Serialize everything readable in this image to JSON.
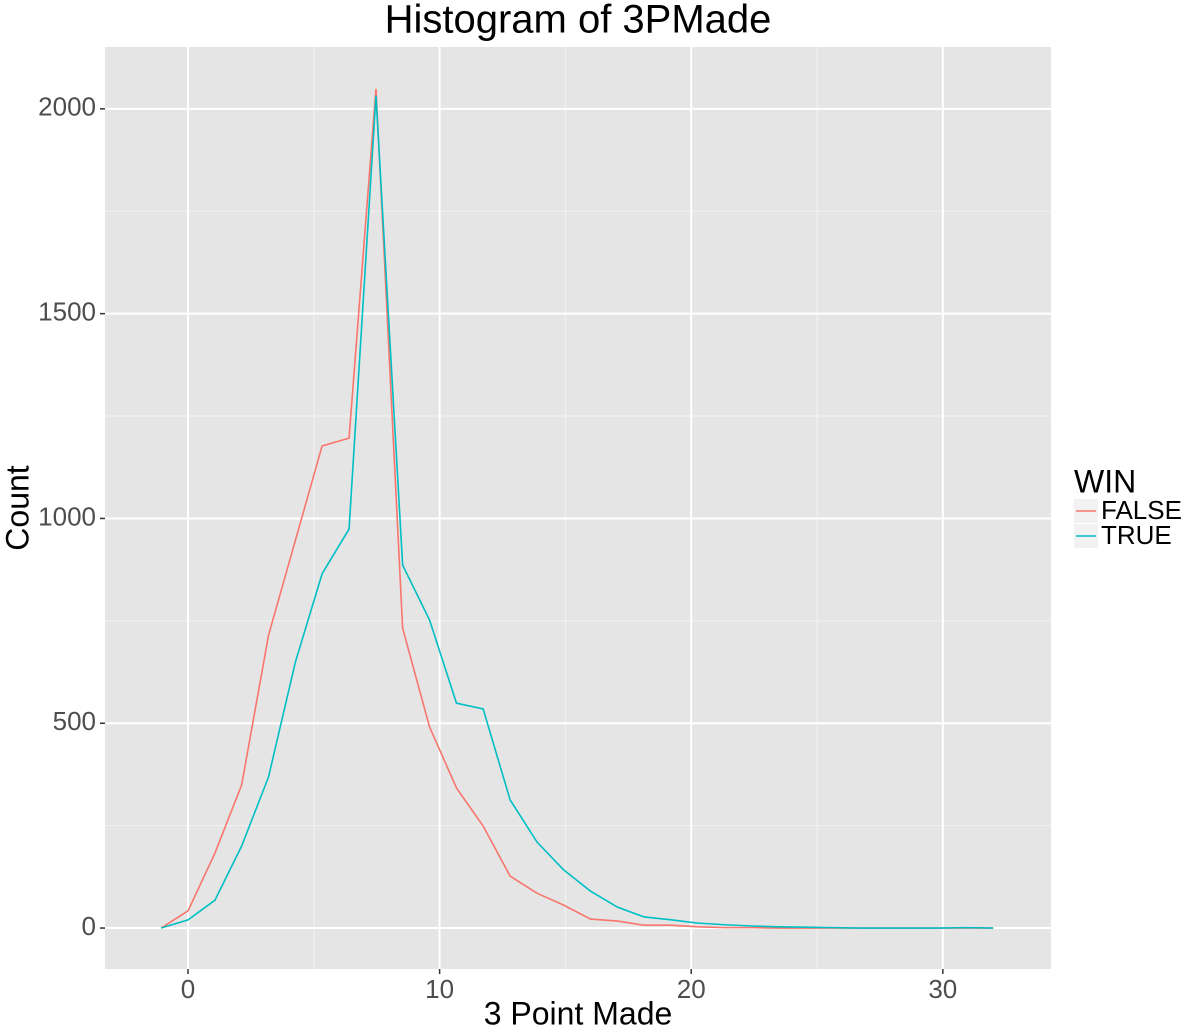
{
  "chart_data": {
    "type": "line",
    "title": "Histogram of 3PMade",
    "x_label": "3 Point Made",
    "y_label": "Count",
    "x": [
      -1.07,
      0,
      1.07,
      2.13,
      3.2,
      4.27,
      5.33,
      6.4,
      7.47,
      8.53,
      9.6,
      10.67,
      11.73,
      12.8,
      13.87,
      14.93,
      16,
      17.07,
      18.13,
      19.2,
      20.27,
      21.33,
      22.4,
      23.47,
      24.53,
      25.6,
      26.67,
      27.73,
      28.8,
      29.87,
      30.93,
      32
    ],
    "series": [
      {
        "name": "FALSE",
        "color": "#f8766d",
        "values": [
          0,
          42,
          183,
          349,
          715,
          947,
          1177,
          1196,
          2049,
          732,
          491,
          342,
          249,
          127,
          85,
          56,
          22,
          17,
          7,
          7,
          3,
          1,
          1,
          0,
          0,
          0,
          0,
          0,
          0,
          0,
          0,
          0
        ]
      },
      {
        "name": "TRUE",
        "color": "#00bfc4",
        "values": [
          0,
          20,
          68,
          200,
          369,
          650,
          865,
          974,
          2032,
          886,
          752,
          549,
          535,
          313,
          210,
          142,
          90,
          51,
          27,
          20,
          12,
          8,
          5,
          3,
          2,
          1,
          0,
          0,
          0,
          0,
          1,
          0
        ]
      }
    ],
    "legend_title": "WIN",
    "xlim": [
      -3.3,
      34.3
    ],
    "ylim": [
      -100,
      2151
    ],
    "xticks": [
      0,
      10,
      20,
      30
    ],
    "yticks": [
      0,
      500,
      1000,
      1500,
      2000
    ],
    "grid": true
  }
}
